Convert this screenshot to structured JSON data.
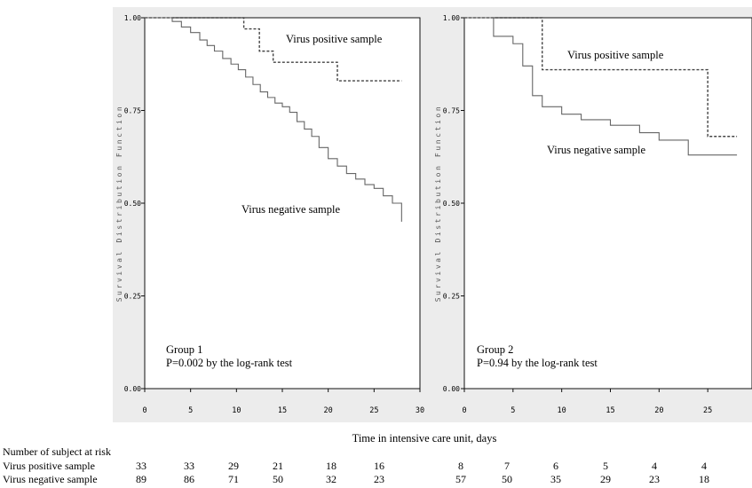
{
  "figure": {
    "xlabel": "Time in intensive care unit, days",
    "risk_title": "Number of subject at risk",
    "risk_rows": [
      {
        "label": "Virus positive sample",
        "group1": [
          "33",
          "33",
          "29",
          "21",
          "18",
          "16"
        ],
        "group2": [
          "8",
          "7",
          "6",
          "5",
          "4",
          "4"
        ]
      },
      {
        "label": "Virus negative sample",
        "group1": [
          "89",
          "86",
          "71",
          "50",
          "32",
          "23"
        ],
        "group2": [
          "57",
          "50",
          "35",
          "29",
          "23",
          "18"
        ]
      }
    ]
  },
  "chart_data": [
    {
      "type": "line",
      "ylabel": "Survival Distribution Function",
      "xlabel": "Time in intensive care unit, days",
      "xlim": [
        0,
        30
      ],
      "ylim": [
        0,
        1
      ],
      "xticks": [
        "0",
        "5",
        "10",
        "15",
        "20",
        "25",
        "30"
      ],
      "yticks": [
        "0.00",
        "0.25",
        "0.50",
        "0.75",
        "1.00"
      ],
      "annotation": [
        "Group 1",
        "P=0.002 by the log-rank test"
      ],
      "series": [
        {
          "name": "Virus positive sample",
          "style": "dashed",
          "step": true,
          "x": [
            0,
            10,
            10.8,
            12.5,
            14,
            21,
            28
          ],
          "y": [
            1.0,
            1.0,
            0.97,
            0.91,
            0.88,
            0.83,
            0.83
          ]
        },
        {
          "name": "Virus negative sample",
          "style": "solid",
          "step": true,
          "x": [
            0,
            3,
            4,
            5,
            6,
            6.8,
            7.6,
            8.5,
            9.4,
            10.2,
            11,
            11.8,
            12.6,
            13.4,
            14.2,
            15,
            15.8,
            16.6,
            17.4,
            18.2,
            19,
            20,
            21,
            22,
            23,
            24,
            25,
            26,
            27,
            28
          ],
          "y": [
            1.0,
            0.99,
            0.975,
            0.96,
            0.94,
            0.925,
            0.91,
            0.89,
            0.875,
            0.86,
            0.84,
            0.82,
            0.8,
            0.785,
            0.77,
            0.76,
            0.745,
            0.72,
            0.7,
            0.68,
            0.65,
            0.62,
            0.6,
            0.58,
            0.565,
            0.55,
            0.54,
            0.52,
            0.5,
            0.45
          ]
        }
      ]
    },
    {
      "type": "line",
      "ylabel": "Survival Distribution Function",
      "xlabel": "Time in intensive care unit, days",
      "xlim": [
        0,
        30
      ],
      "ylim": [
        0,
        1
      ],
      "xticks": [
        "0",
        "5",
        "10",
        "15",
        "20",
        "25"
      ],
      "yticks": [
        "0.00",
        "0.25",
        "0.50",
        "0.75",
        "1.00"
      ],
      "annotation": [
        "Group 2",
        "P=0.94 by the log-rank test"
      ],
      "series": [
        {
          "name": "Virus positive sample",
          "style": "dashed",
          "step": true,
          "x": [
            0,
            8,
            25,
            28
          ],
          "y": [
            1.0,
            0.86,
            0.68,
            0.68
          ]
        },
        {
          "name": "Virus negative sample",
          "style": "solid",
          "step": true,
          "x": [
            0,
            3,
            5,
            6,
            7,
            8,
            10,
            12,
            15,
            18,
            20,
            23,
            28
          ],
          "y": [
            1.0,
            0.95,
            0.93,
            0.87,
            0.79,
            0.76,
            0.74,
            0.725,
            0.71,
            0.69,
            0.67,
            0.63,
            0.63
          ]
        }
      ]
    }
  ]
}
